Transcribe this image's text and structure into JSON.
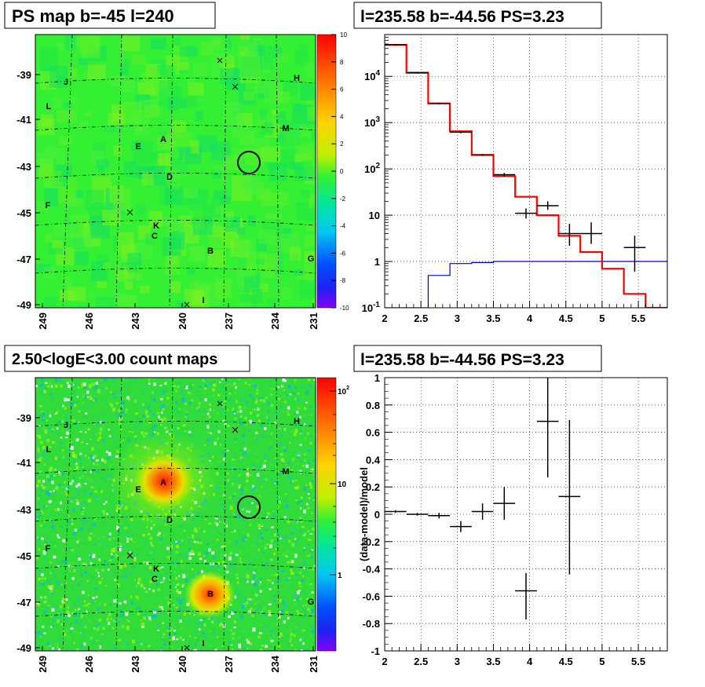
{
  "panels": {
    "ps_map_title": "PS map b=-45 l=240",
    "spectrum_title": "l=235.58 b=-44.56 PS=3.23",
    "count_map_title": "2.50<logE<3.00 count maps",
    "residual_title": "l=235.58 b=-44.56 PS=3.23"
  },
  "chart_data": [
    {
      "type": "heatmap",
      "title": "PS map b=-45 l=240",
      "x_ticks": [
        "249",
        "246",
        "243",
        "240",
        "237",
        "234",
        "231"
      ],
      "y_ticks": [
        "-39",
        "-41",
        "-43",
        "-45",
        "-47",
        "-49"
      ],
      "zlim": [
        -10,
        10
      ],
      "z_ticks": [
        "10",
        "8",
        "6",
        "4",
        "2",
        "0",
        "-2",
        "-4",
        "-6",
        "-8",
        "-10"
      ],
      "source_labels": [
        "J",
        "H",
        "L",
        "M",
        "A",
        "E",
        "D",
        "F",
        "K",
        "C",
        "B",
        "G",
        "I"
      ],
      "colors": {
        "background": "#33f033",
        "border": "#000000"
      }
    },
    {
      "type": "line",
      "title": "l=235.58 b=-44.56 PS=3.23",
      "xlim": [
        2,
        5.9
      ],
      "ylim": [
        0.1,
        80000
      ],
      "y_scale": "log",
      "grid": true,
      "x_ticks": [
        "2",
        "2.5",
        "3",
        "3.5",
        "4",
        "4.5",
        "5",
        "5.5"
      ],
      "y_ticks": [
        "10^-1",
        "1",
        "10",
        "10^2",
        "10^3",
        "10^4"
      ],
      "bin_edges": [
        2.0,
        2.3,
        2.6,
        2.9,
        3.2,
        3.5,
        3.8,
        4.1,
        4.4,
        4.7,
        5.0,
        5.3,
        5.6,
        5.9
      ],
      "series": [
        {
          "values": [
            48000,
            12000,
            2600,
            650,
            200,
            70,
            25,
            10,
            3.6,
            1.6,
            0.7,
            0.2,
            0.1,
            0.1
          ],
          "color": "#ff0000"
        },
        {
          "values": [
            0.1,
            0.1,
            0.5,
            0.9,
            0.95,
            1.0,
            1.0,
            1.0,
            1.0,
            1.0,
            1.0,
            1.0,
            1.0,
            1.0
          ],
          "color": "#0000cc"
        },
        {
          "values": [
            48000,
            12000,
            2600,
            620,
            200,
            75,
            11,
            16,
            4,
            4,
            2
          ],
          "x": [
            2.15,
            2.45,
            2.75,
            3.05,
            3.35,
            3.65,
            3.95,
            4.25,
            4.55,
            4.85,
            5.45
          ],
          "err_lo": [
            46000,
            11500,
            2500,
            590,
            190,
            68,
            8.5,
            13,
            2.2,
            2.4,
            0.6
          ],
          "err_hi": [
            50000,
            12500,
            2700,
            650,
            210,
            82,
            14,
            20,
            6.5,
            7,
            3.6
          ],
          "color": "#000000"
        }
      ]
    },
    {
      "type": "heatmap",
      "title": "2.50<logE<3.00 count maps",
      "x_ticks": [
        "249",
        "246",
        "243",
        "240",
        "237",
        "234",
        "231"
      ],
      "y_ticks": [
        "-39",
        "-41",
        "-43",
        "-45",
        "-47",
        "-49"
      ],
      "z_scale": "log",
      "z_ticks": [
        "10^2",
        "10",
        "1"
      ],
      "source_labels": [
        "J",
        "H",
        "L",
        "M",
        "A",
        "E",
        "D",
        "F",
        "K",
        "C",
        "B",
        "G",
        "I"
      ],
      "colors": {
        "background": "#2fdc3a"
      }
    },
    {
      "type": "scatter",
      "title": "l=235.58 b=-44.56 PS=3.23",
      "ylabel": "(data-model)/model",
      "xlim": [
        2,
        5.9
      ],
      "ylim": [
        -1,
        1
      ],
      "grid": true,
      "x_ticks": [
        "2",
        "2.5",
        "3",
        "3.5",
        "4",
        "4.5",
        "5",
        "5.5"
      ],
      "y_ticks": [
        "1",
        "0.8",
        "0.6",
        "0.4",
        "0.2",
        "0",
        "-0.2",
        "-0.4",
        "-0.6",
        "-0.8",
        "-1"
      ],
      "series": [
        {
          "x": [
            2.15,
            2.45,
            2.75,
            3.05,
            3.35,
            3.65,
            3.95,
            4.25,
            4.55
          ],
          "values": [
            0.02,
            0.0,
            -0.01,
            -0.09,
            0.02,
            0.08,
            -0.56,
            0.68,
            0.13
          ],
          "err_lo": [
            0.01,
            0.01,
            0.02,
            0.04,
            0.06,
            0.12,
            0.21,
            0.41,
            0.57
          ],
          "err_hi": [
            0.01,
            0.01,
            0.02,
            0.04,
            0.06,
            0.12,
            0.13,
            0.32,
            0.56
          ],
          "color": "#000000"
        }
      ]
    }
  ]
}
